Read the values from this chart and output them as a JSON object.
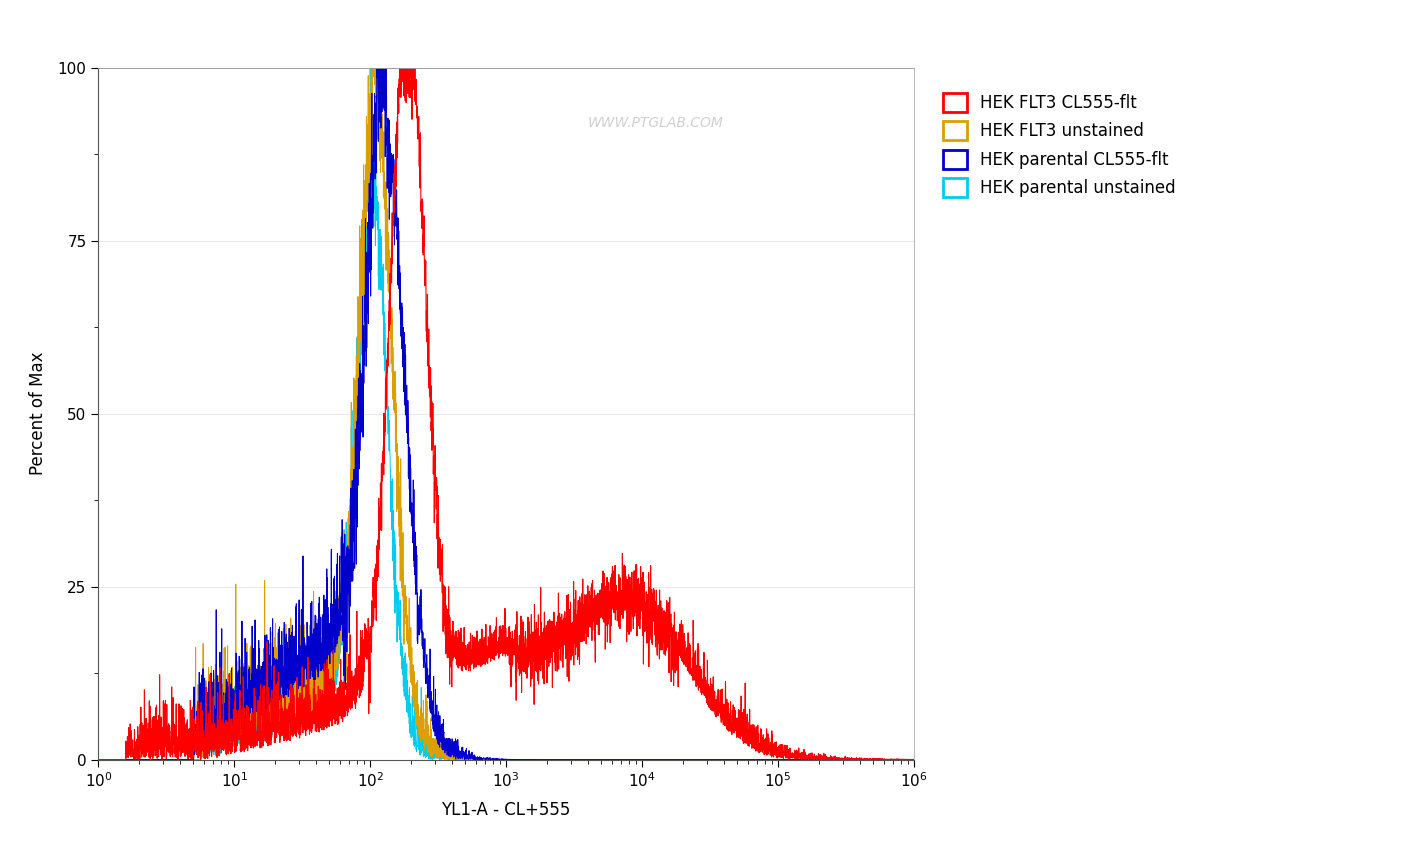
{
  "xlabel": "YL1-A - CL+555",
  "ylabel": "Percent of Max",
  "watermark": "WWW.PTGLAB.COM",
  "legend_entries": [
    {
      "label": "HEK FLT3 CL555-flt",
      "color": "#ff0000"
    },
    {
      "label": "HEK FLT3 unstained",
      "color": "#daa000"
    },
    {
      "label": "HEK parental CL555-flt",
      "color": "#0000cc"
    },
    {
      "label": "HEK parental unstained",
      "color": "#00ccee"
    }
  ],
  "yticks": [
    0,
    25,
    50,
    75,
    100
  ],
  "xlim": [
    1,
    1000000
  ],
  "ylim": [
    0,
    100
  ],
  "background_color": "#ffffff"
}
